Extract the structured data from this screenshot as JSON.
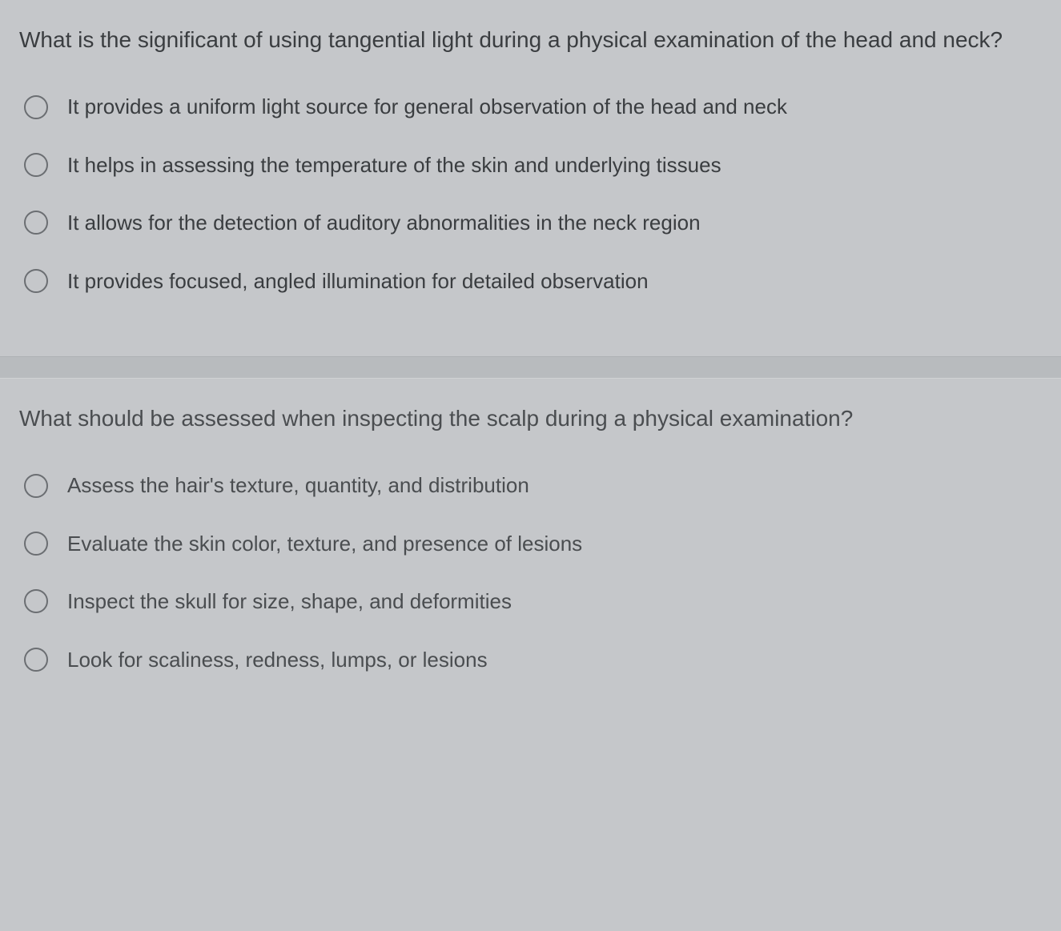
{
  "questions": [
    {
      "prompt": "What is the significant of using tangential light during a physical examination of the head and neck?",
      "options": [
        "It provides a uniform light source for general observation of the head and neck",
        "It helps in assessing the temperature of the skin and underlying tissues",
        "It allows for the detection of auditory abnormalities in the neck region",
        "It provides focused, angled illumination for detailed observation"
      ]
    },
    {
      "prompt": "What should be assessed when inspecting the scalp during a physical examination?",
      "options": [
        "Assess the hair's texture, quantity, and distribution",
        "Evaluate the skin color, texture, and presence of lesions",
        "Inspect the skull for size, shape, and deformities",
        "Look for scaliness, redness, lumps, or lesions"
      ]
    }
  ],
  "colors": {
    "background": "#c5c7ca",
    "text": "#3a3d40",
    "radio_border": "#6b6e72",
    "divider": "#b8bbbe"
  },
  "typography": {
    "question_fontsize": 28,
    "option_fontsize": 26,
    "font_family": "Arial"
  }
}
